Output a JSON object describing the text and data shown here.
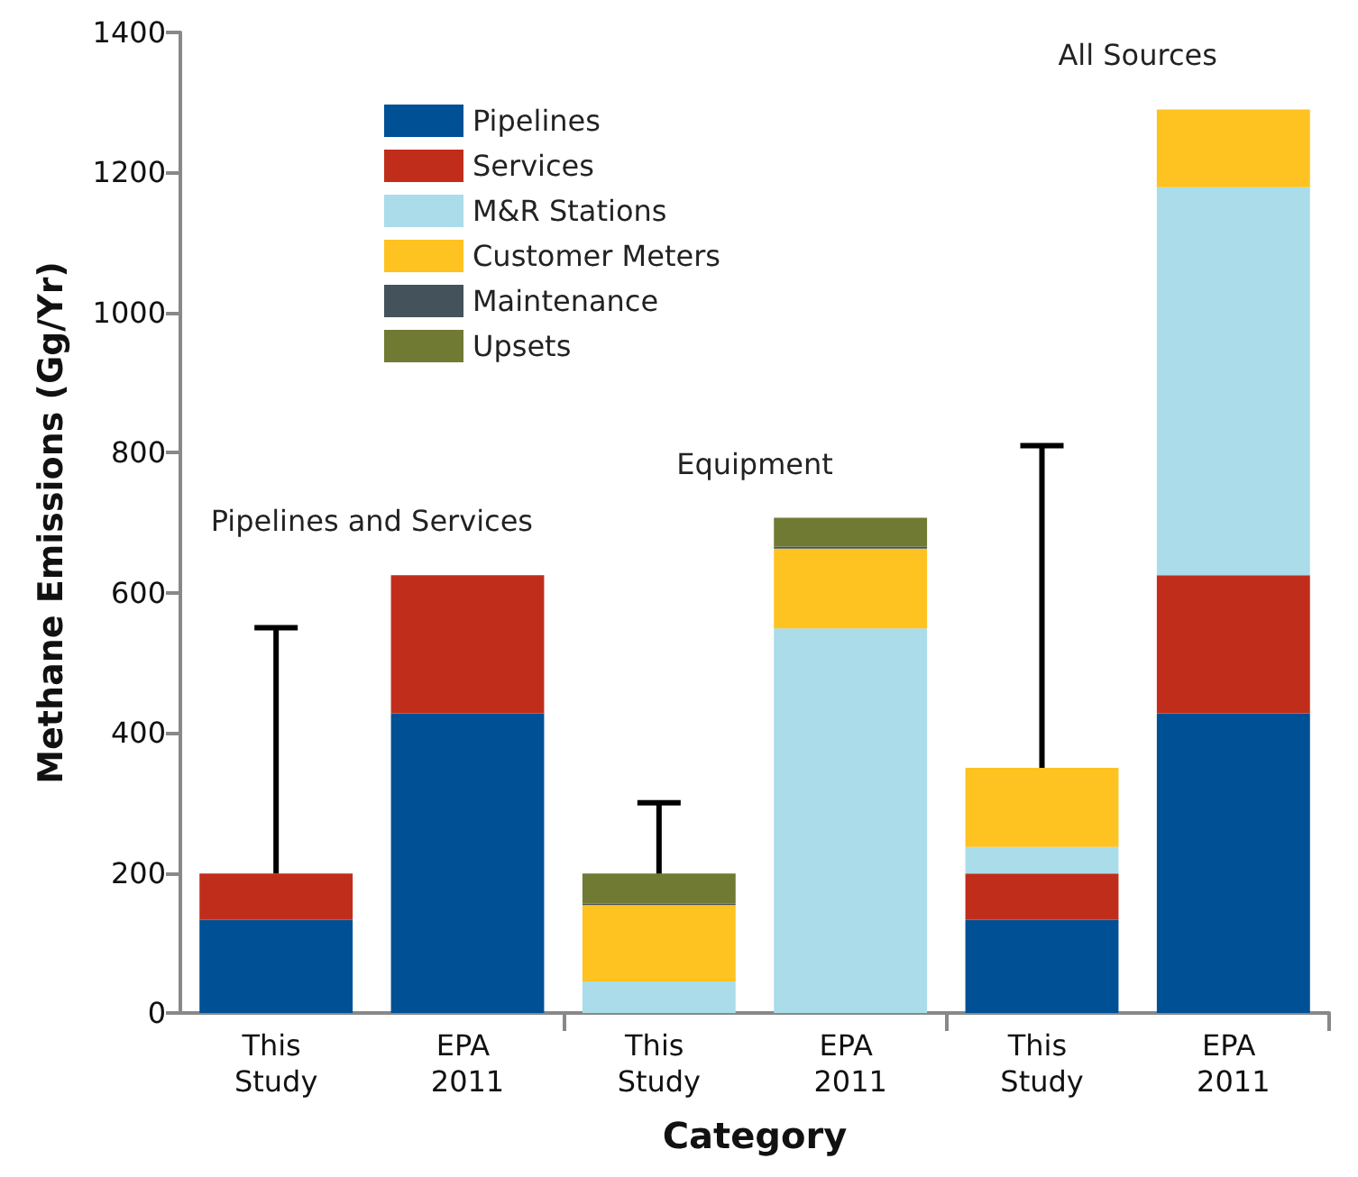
{
  "chart_data": {
    "type": "bar",
    "stacked": true,
    "xlabel": "Category",
    "ylabel": "Methane Emissions (Gg/Yr)",
    "categories": [
      "This Study",
      "EPA 2011",
      "This Study",
      "EPA 2011",
      "This Study",
      "EPA 2011"
    ],
    "series": [
      {
        "name": "Pipelines",
        "color": "#005096",
        "values": [
          133,
          428,
          0,
          0,
          133,
          428
        ]
      },
      {
        "name": "Services",
        "color": "#c02e1b",
        "values": [
          66,
          197,
          0,
          0,
          66,
          197
        ]
      },
      {
        "name": "M&R Stations",
        "color": "#aadde9",
        "values": [
          0,
          0,
          45,
          549,
          38,
          554
        ]
      },
      {
        "name": "Customer Meters",
        "color": "#fec221",
        "values": [
          0,
          0,
          109,
          114,
          113,
          111
        ]
      },
      {
        "name": "Maintenance",
        "color": "#44525c",
        "values": [
          0,
          0,
          2,
          3,
          0,
          0
        ]
      },
      {
        "name": "Upsets",
        "color": "#717a33",
        "values": [
          0,
          0,
          43,
          41,
          0,
          0
        ],
        "errors": [
          [
            199,
            550
          ],
          null,
          [
            199,
            300
          ],
          null,
          [
            350,
            810
          ],
          null
        ]
      }
    ],
    "annotations": [
      "Pipelines and Services",
      "Equipment",
      "All Sources"
    ],
    "ylim": [
      0,
      1400
    ],
    "yticks": [
      0,
      200,
      400,
      600,
      800,
      1000,
      1200,
      1400
    ],
    "grid": false,
    "legend": "top left"
  }
}
